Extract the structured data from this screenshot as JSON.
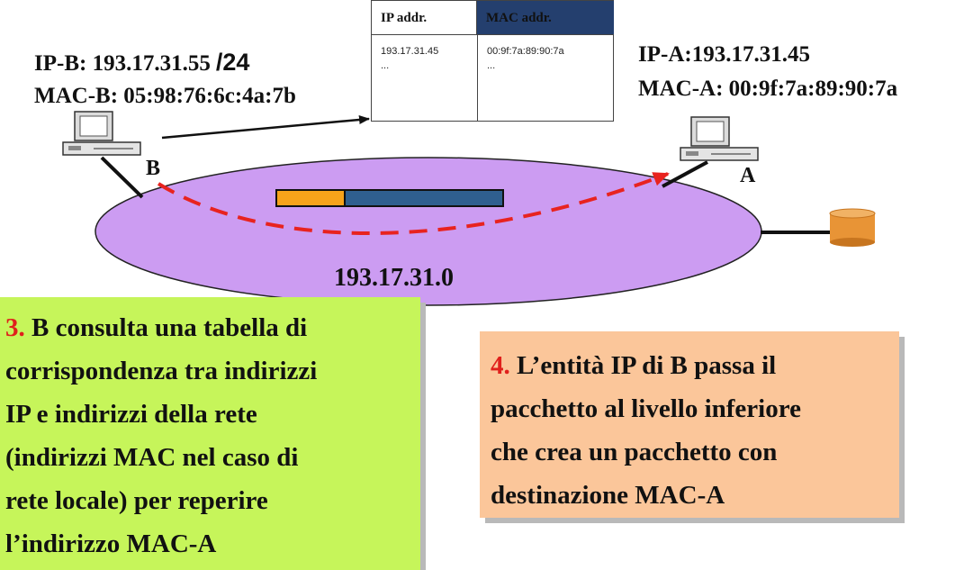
{
  "host_b": {
    "ip_line": "IP-B: 193.17.31.55",
    "prefix": "/24",
    "mac_line": "MAC-B: 05:98:76:6c:4a:7b",
    "node_label": "B"
  },
  "host_a": {
    "ip_line": "IP-A:193.17.31.45",
    "mac_line": "MAC-A: 00:9f:7a:89:90:7a",
    "node_label": "A"
  },
  "network": {
    "address": "193.17.31.0"
  },
  "arp_table": {
    "headers": [
      "IP addr.",
      "MAC addr."
    ],
    "rows": [
      [
        "193.17.31.45",
        "00:9f:7a:89:90:7a"
      ],
      [
        "...",
        "..."
      ]
    ]
  },
  "step3": {
    "number": "3.",
    "lines": [
      "B consulta una tabella di",
      "corrispondenza tra indirizzi",
      "IP e indirizzi della rete",
      "(indirizzi MAC nel caso di",
      "rete locale) per reperire",
      "l’indirizzo MAC-A"
    ]
  },
  "step4": {
    "number": "4.",
    "lines": [
      "L’entità IP di B passa il",
      "pacchetto al livello inferiore",
      "che crea un pacchetto con",
      "destinazione MAC-A"
    ]
  },
  "colors": {
    "network_fill": "#cc9cf2",
    "packet_header": "#f7a31a",
    "packet_body": "#2f5f8f",
    "path_arrow": "#e8231f",
    "step3_bg": "#c6f55a",
    "step4_bg": "#fbc69a",
    "server_fill": "#e89436"
  }
}
